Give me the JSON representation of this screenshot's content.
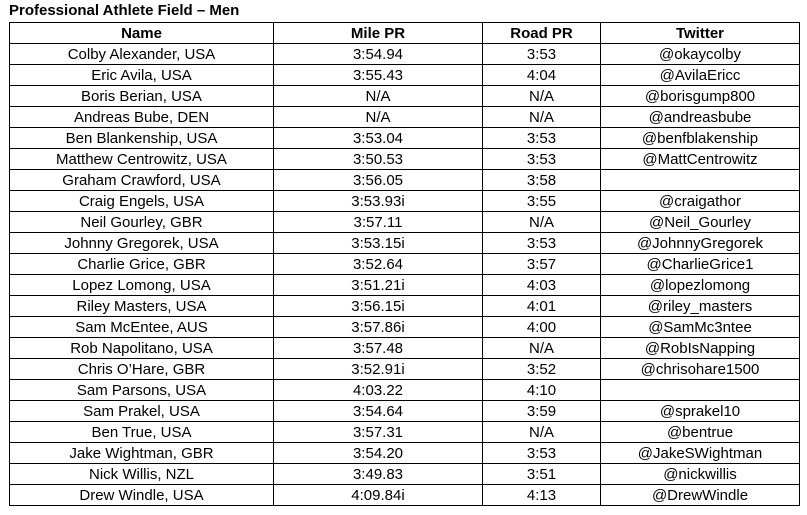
{
  "document": {
    "title": "Professional Athlete Field – Men"
  },
  "table": {
    "headers": [
      "Name",
      "Mile PR",
      "Road PR",
      "Twitter"
    ],
    "rows": [
      {
        "name": "Colby Alexander, USA",
        "mile_pr": "3:54.94",
        "road_pr": "3:53",
        "twitter": "@okaycolby"
      },
      {
        "name": "Eric Avila, USA",
        "mile_pr": "3:55.43",
        "road_pr": "4:04",
        "twitter": "@AvilaEricc"
      },
      {
        "name": "Boris Berian, USA",
        "mile_pr": "N/A",
        "road_pr": "N/A",
        "twitter": "@borisgump800"
      },
      {
        "name": "Andreas Bube, DEN",
        "mile_pr": "N/A",
        "road_pr": "N/A",
        "twitter": "@andreasbube"
      },
      {
        "name": "Ben Blankenship, USA",
        "mile_pr": "3:53.04",
        "road_pr": "3:53",
        "twitter": "@benfblakenship"
      },
      {
        "name": "Matthew Centrowitz, USA",
        "mile_pr": "3:50.53",
        "road_pr": "3:53",
        "twitter": "@MattCentrowitz"
      },
      {
        "name": "Graham Crawford, USA",
        "mile_pr": "3:56.05",
        "road_pr": "3:58",
        "twitter": ""
      },
      {
        "name": "Craig Engels, USA",
        "mile_pr": "3:53.93i",
        "road_pr": "3:55",
        "twitter": "@craigathor"
      },
      {
        "name": "Neil Gourley, GBR",
        "mile_pr": "3:57.11",
        "road_pr": "N/A",
        "twitter": "@Neil_Gourley"
      },
      {
        "name": "Johnny Gregorek, USA",
        "mile_pr": "3:53.15i",
        "road_pr": "3:53",
        "twitter": "@JohnnyGregorek"
      },
      {
        "name": "Charlie Grice, GBR",
        "mile_pr": "3:52.64",
        "road_pr": "3:57",
        "twitter": "@CharlieGrice1"
      },
      {
        "name": "Lopez Lomong, USA",
        "mile_pr": "3:51.21i",
        "road_pr": "4:03",
        "twitter": "@lopezlomong"
      },
      {
        "name": "Riley Masters, USA",
        "mile_pr": "3:56.15i",
        "road_pr": "4:01",
        "twitter": "@riley_masters"
      },
      {
        "name": "Sam McEntee, AUS",
        "mile_pr": "3:57.86i",
        "road_pr": "4:00",
        "twitter": "@SamMc3ntee"
      },
      {
        "name": "Rob Napolitano, USA",
        "mile_pr": "3:57.48",
        "road_pr": "N/A",
        "twitter": "@RobIsNapping"
      },
      {
        "name": "Chris O’Hare, GBR",
        "mile_pr": "3:52.91i",
        "road_pr": "3:52",
        "twitter": "@chrisohare1500"
      },
      {
        "name": "Sam Parsons, USA",
        "mile_pr": "4:03.22",
        "road_pr": "4:10",
        "twitter": ""
      },
      {
        "name": "Sam Prakel, USA",
        "mile_pr": "3:54.64",
        "road_pr": "3:59",
        "twitter": "@sprakel10"
      },
      {
        "name": "Ben True, USA",
        "mile_pr": "3:57.31",
        "road_pr": "N/A",
        "twitter": "@bentrue"
      },
      {
        "name": "Jake Wightman, GBR",
        "mile_pr": "3:54.20",
        "road_pr": "3:53",
        "twitter": "@JakeSWightman"
      },
      {
        "name": "Nick Willis, NZL",
        "mile_pr": "3:49.83",
        "road_pr": "3:51",
        "twitter": "@nickwillis"
      },
      {
        "name": "Drew Windle, USA",
        "mile_pr": "4:09.84i",
        "road_pr": "4:13",
        "twitter": "@DrewWindle"
      }
    ]
  }
}
